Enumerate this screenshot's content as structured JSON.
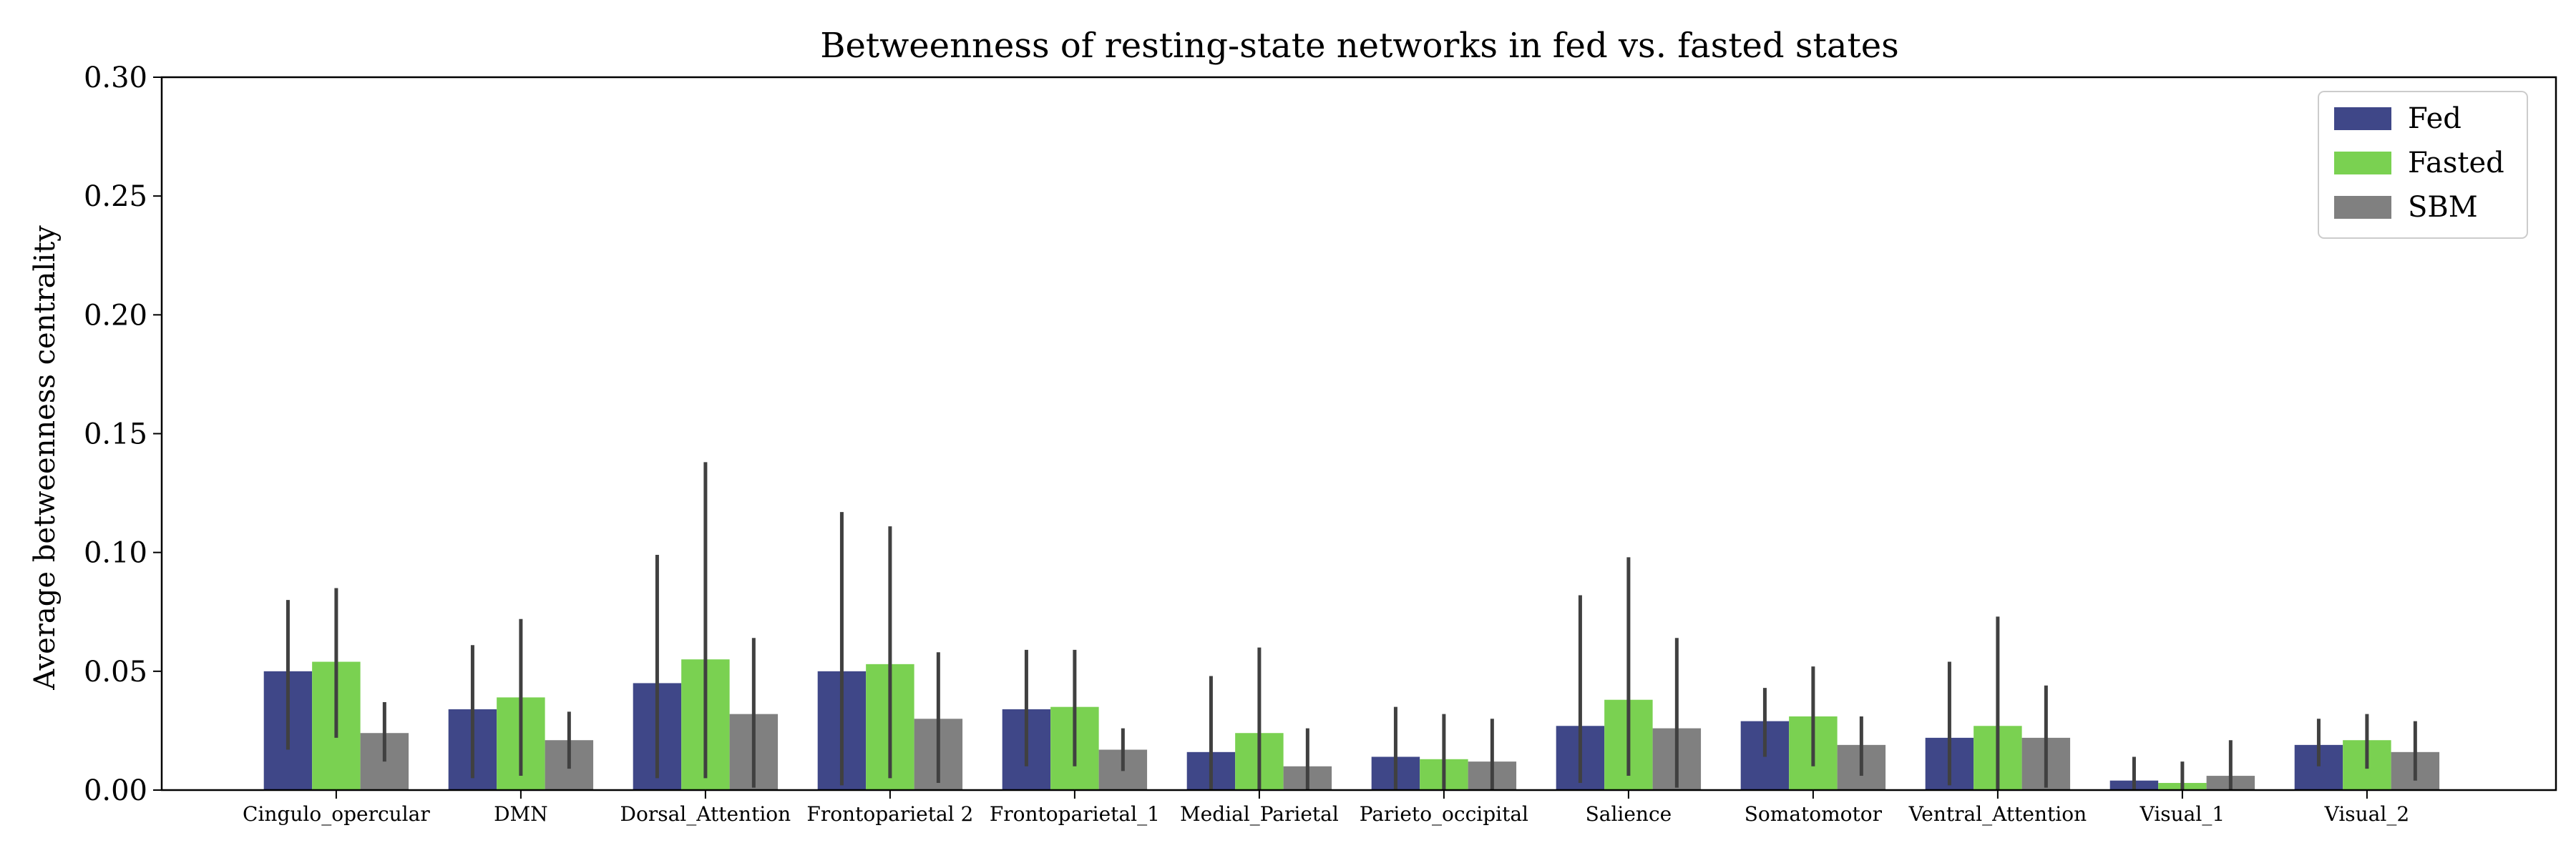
{
  "chart_data": {
    "type": "bar",
    "title": "Betweenness of resting-state networks in fed vs. fasted states",
    "xlabel": "",
    "ylabel": "Average betweenness centrality",
    "ylim": [
      0,
      0.3
    ],
    "yticks": [
      "0.00",
      "0.05",
      "0.10",
      "0.15",
      "0.20",
      "0.25",
      "0.30"
    ],
    "legend_position": "top-right",
    "grid": false,
    "categories": [
      "Cingulo_opercular",
      "DMN",
      "Dorsal_Attention",
      "Frontoparietal 2",
      "Frontoparietal_1",
      "Medial_Parietal",
      "Parieto_occipital",
      "Salience",
      "Somatomotor",
      "Ventral_Attention",
      "Visual_1",
      "Visual_2"
    ],
    "series": [
      {
        "name": "Fed",
        "color": "#3f4788",
        "values": [
          0.05,
          0.034,
          0.045,
          0.05,
          0.034,
          0.016,
          0.014,
          0.027,
          0.029,
          0.022,
          0.004,
          0.019
        ],
        "err_low": [
          0.017,
          0.005,
          0.005,
          0.002,
          0.01,
          0.0,
          0.0,
          0.003,
          0.014,
          0.002,
          0.0,
          0.01
        ],
        "err_high": [
          0.08,
          0.061,
          0.099,
          0.117,
          0.059,
          0.048,
          0.035,
          0.082,
          0.043,
          0.054,
          0.014,
          0.03
        ]
      },
      {
        "name": "Fasted",
        "color": "#7ad151",
        "values": [
          0.054,
          0.039,
          0.055,
          0.053,
          0.035,
          0.024,
          0.013,
          0.038,
          0.031,
          0.027,
          0.003,
          0.021
        ],
        "err_low": [
          0.022,
          0.006,
          0.005,
          0.005,
          0.01,
          0.0,
          0.0,
          0.006,
          0.01,
          0.0,
          0.0,
          0.009
        ],
        "err_high": [
          0.085,
          0.072,
          0.138,
          0.111,
          0.059,
          0.06,
          0.032,
          0.098,
          0.052,
          0.073,
          0.012,
          0.032
        ]
      },
      {
        "name": "SBM",
        "color": "#808080",
        "values": [
          0.024,
          0.021,
          0.032,
          0.03,
          0.017,
          0.01,
          0.012,
          0.026,
          0.019,
          0.022,
          0.006,
          0.016
        ],
        "err_low": [
          0.012,
          0.009,
          0.001,
          0.003,
          0.008,
          0.0,
          0.0,
          0.001,
          0.006,
          0.001,
          0.0,
          0.004
        ],
        "err_high": [
          0.037,
          0.033,
          0.064,
          0.058,
          0.026,
          0.026,
          0.03,
          0.064,
          0.031,
          0.044,
          0.021,
          0.029
        ]
      }
    ]
  }
}
